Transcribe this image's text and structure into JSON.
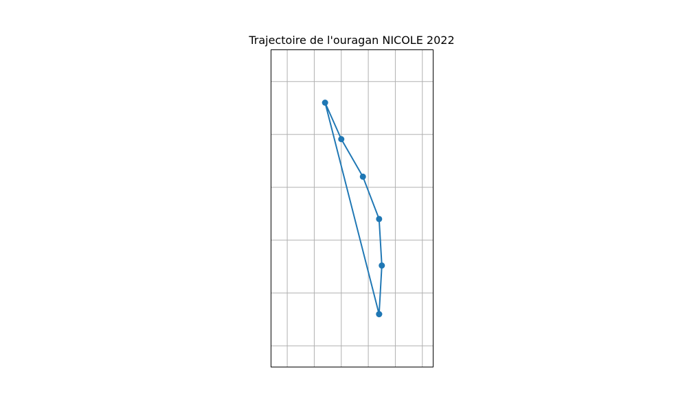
{
  "chart_data": {
    "type": "line",
    "title": "Trajectoire de l'ouragan NICOLE 2022",
    "xlabel": "",
    "ylabel": "",
    "grid": true,
    "xlim": [
      -82.3,
      -79.3
    ],
    "ylim": [
      25.6,
      31.6
    ],
    "series": [
      {
        "x": [
          -80.3,
          -80.25,
          -80.3,
          -80.6,
          -81.0,
          -81.3,
          -80.3
        ],
        "y": [
          26.6,
          27.52,
          28.4,
          29.2,
          29.91,
          30.6,
          26.6
        ],
        "color": "#1f77b4",
        "marker": "circle"
      }
    ]
  }
}
